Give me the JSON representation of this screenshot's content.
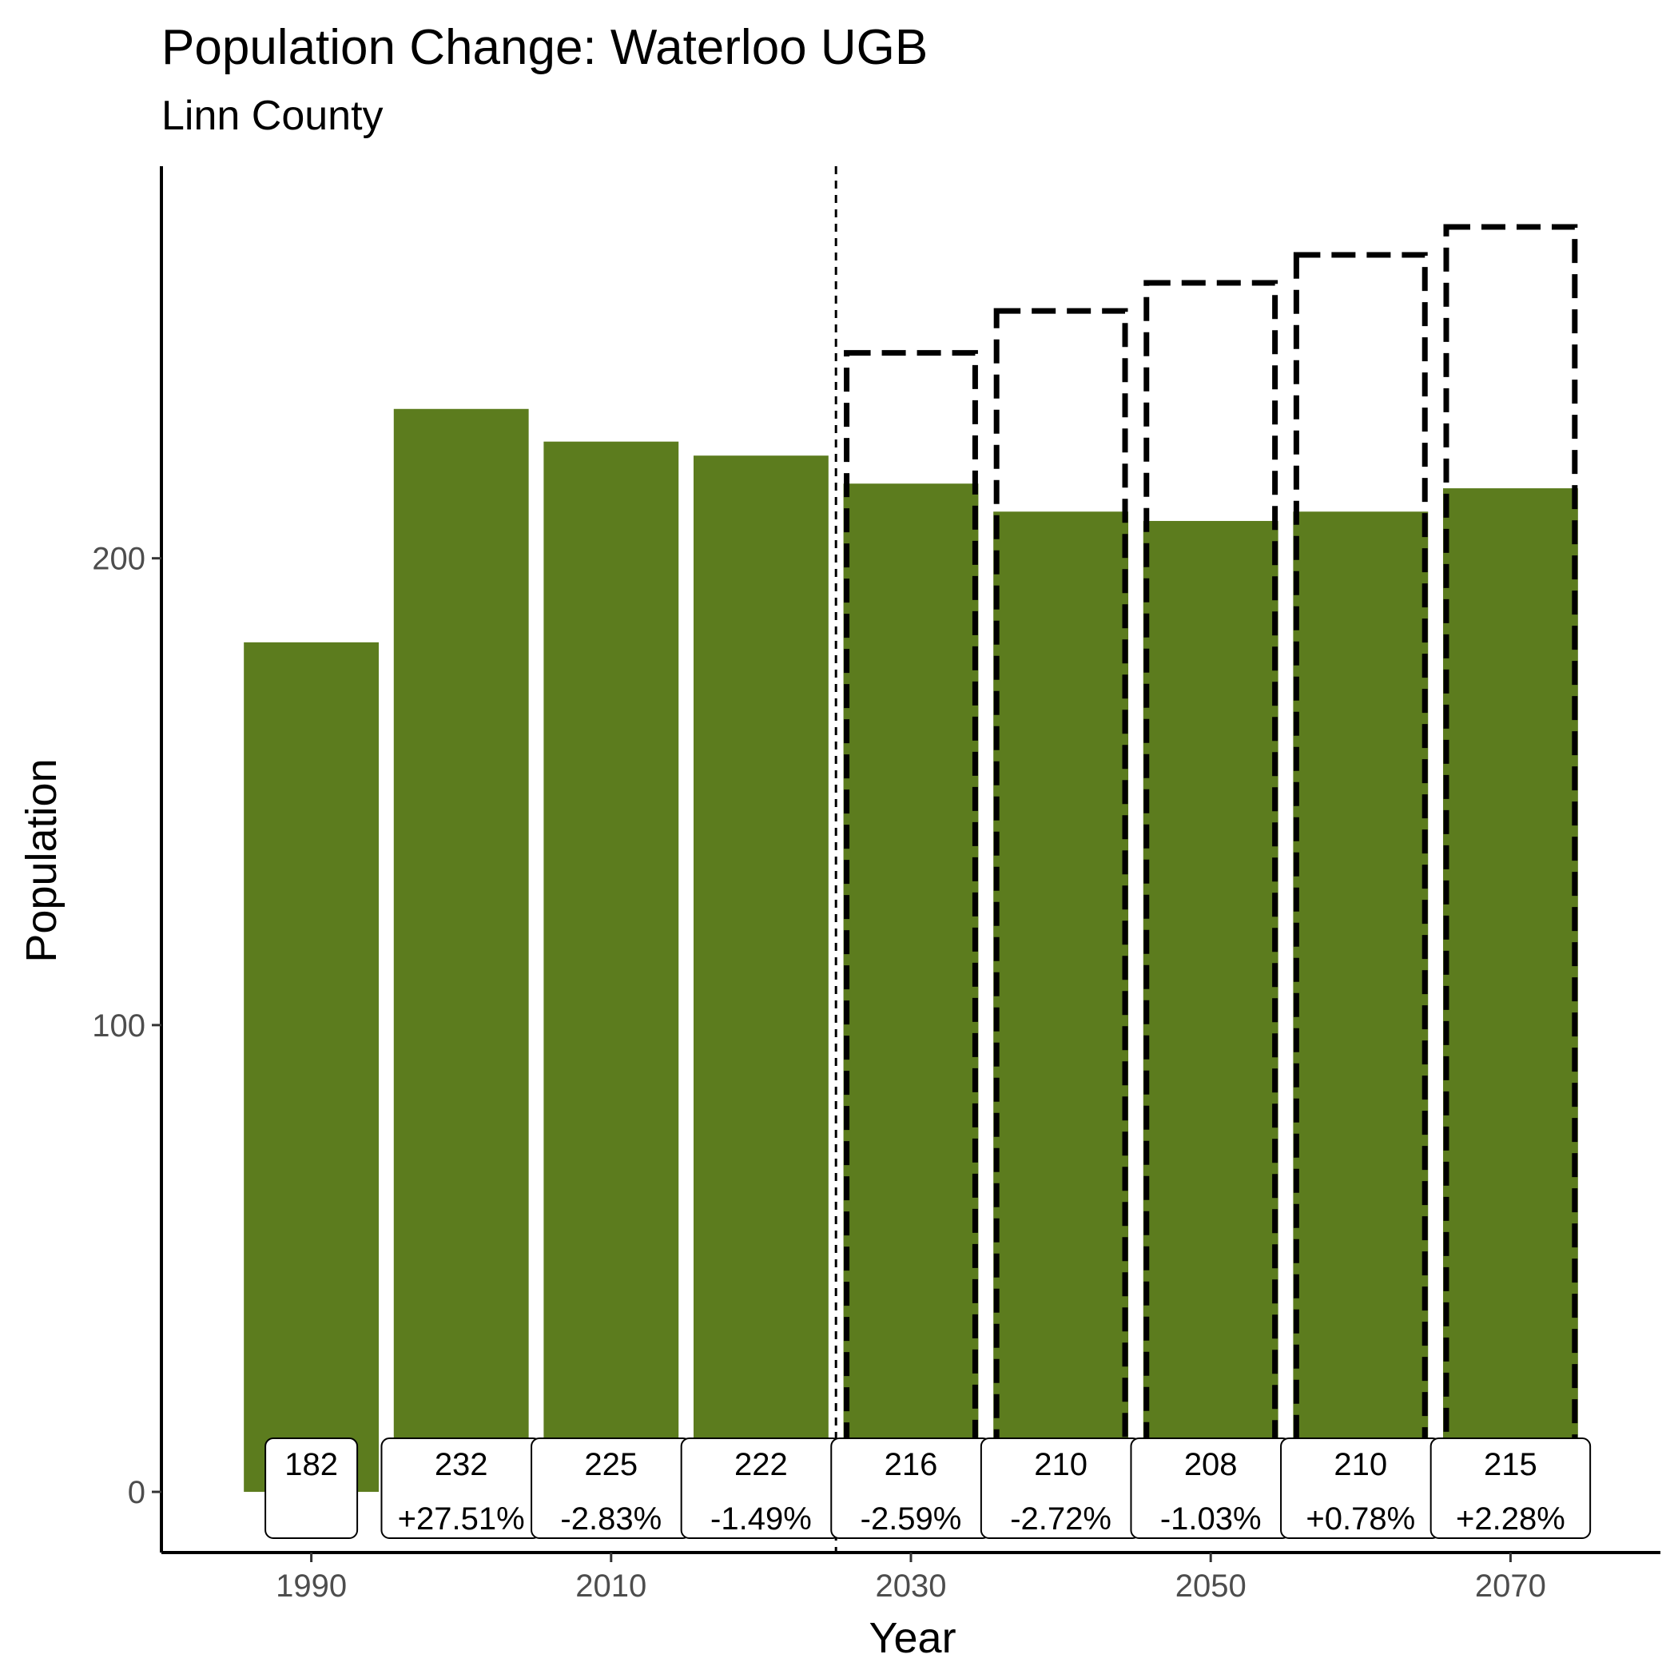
{
  "chart_data": {
    "type": "bar",
    "title": "Population Change: Waterloo UGB",
    "subtitle": "Linn County",
    "xlabel": "Year",
    "ylabel": "Population",
    "x": [
      1990,
      2000,
      2010,
      2020,
      2030,
      2040,
      2050,
      2060,
      2070
    ],
    "values": [
      182,
      232,
      225,
      222,
      216,
      210,
      208,
      210,
      215
    ],
    "change_labels": [
      "",
      "+27.51%",
      "-2.83%",
      "-1.49%",
      "-2.59%",
      "-2.72%",
      "-1.03%",
      "+0.78%",
      "+2.28%"
    ],
    "projection_outline": {
      "x": [
        2030,
        2040,
        2050,
        2060,
        2070
      ],
      "values": [
        244,
        253,
        259,
        265,
        271
      ],
      "style": "dashed"
    },
    "projection_divider_year": 2025,
    "xlim": [
      1980,
      2080
    ],
    "ylim": [
      -13,
      284
    ],
    "xticks": [
      1990,
      2010,
      2030,
      2050,
      2070
    ],
    "yticks": [
      0,
      100,
      200
    ],
    "grid": false,
    "colors": {
      "bar": "#5c7c1e",
      "outline": "#000000",
      "label_box": "#ffffff"
    }
  }
}
